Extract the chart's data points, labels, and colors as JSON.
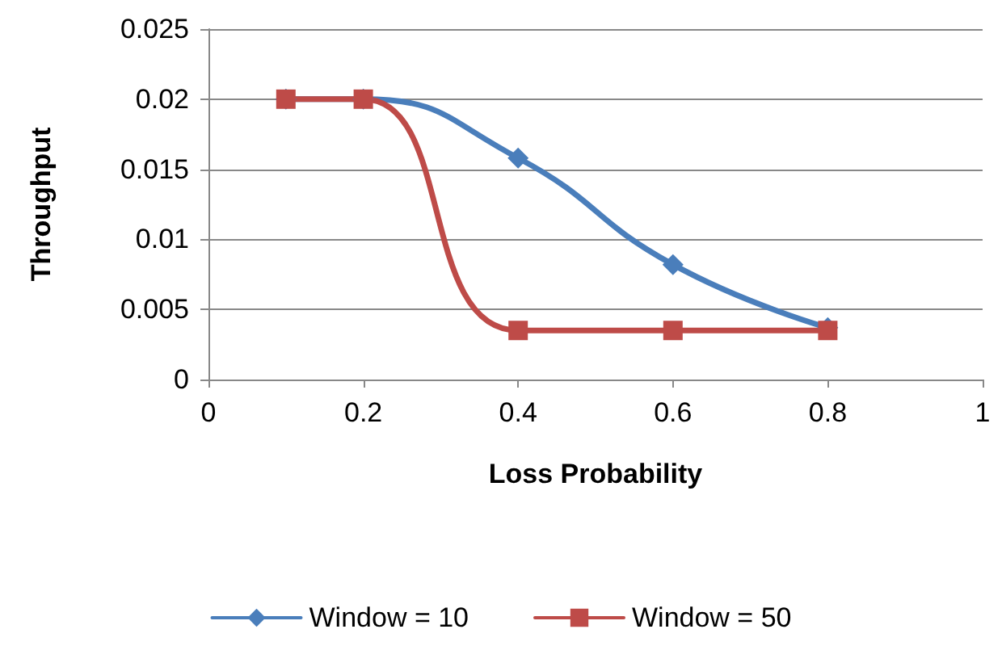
{
  "chart_data": {
    "type": "line",
    "xlabel": "Loss Probability",
    "ylabel": "Throughput",
    "x": [
      0.1,
      0.2,
      0.4,
      0.6,
      0.8
    ],
    "series": [
      {
        "name": "Window = 10",
        "color": "#4a7ebb",
        "marker": "diamond",
        "values": [
          0.02,
          0.02,
          0.0158,
          0.0082,
          0.0037
        ]
      },
      {
        "name": "Window = 50",
        "color": "#be4b48",
        "marker": "square",
        "values": [
          0.02,
          0.02,
          0.0035,
          0.0035,
          0.0035
        ]
      }
    ],
    "xlim": [
      0,
      1
    ],
    "xticks": [
      0,
      0.2,
      0.4,
      0.6,
      0.8,
      1
    ],
    "ylim": [
      0,
      0.025
    ],
    "yticks": [
      0,
      0.005,
      0.01,
      0.015,
      0.02,
      0.025
    ],
    "grid": "y",
    "legend": "bottom",
    "line_style": "solid"
  }
}
